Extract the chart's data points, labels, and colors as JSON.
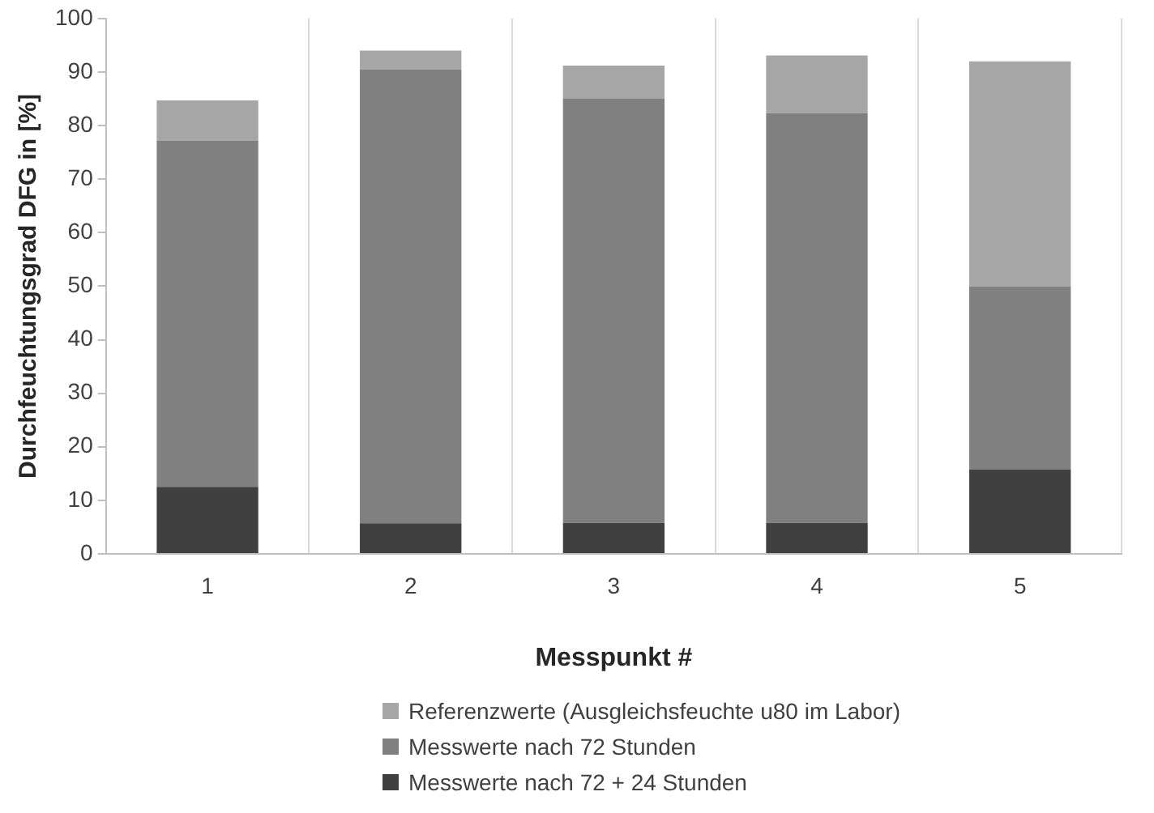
{
  "chart_data": {
    "type": "bar",
    "stacked": true,
    "xlabel": "Messpunkt #",
    "ylabel": "Durchfeuchtungsgrad DFG in [%]",
    "categories": [
      "1",
      "2",
      "3",
      "4",
      "5"
    ],
    "series": [
      {
        "name": "Messwerte nach 72 + 24 Stunden",
        "color": "#404040",
        "values": [
          12.5,
          5.7,
          5.8,
          5.8,
          15.8
        ]
      },
      {
        "name": "Messwerte nach 72 Stunden",
        "color": "#808080",
        "values": [
          64.7,
          84.8,
          79.2,
          76.5,
          34.2
        ]
      },
      {
        "name": "Referenzwerte (Ausgleichsfeuchte u80 im Labor)",
        "color": "#a6a6a6",
        "values": [
          7.5,
          3.5,
          6.2,
          10.8,
          42
        ]
      }
    ],
    "ylim": [
      0,
      100
    ],
    "yticks": [
      0,
      10,
      20,
      30,
      40,
      50,
      60,
      70,
      80,
      90,
      100
    ],
    "grid": "x",
    "legend": "bottom"
  }
}
